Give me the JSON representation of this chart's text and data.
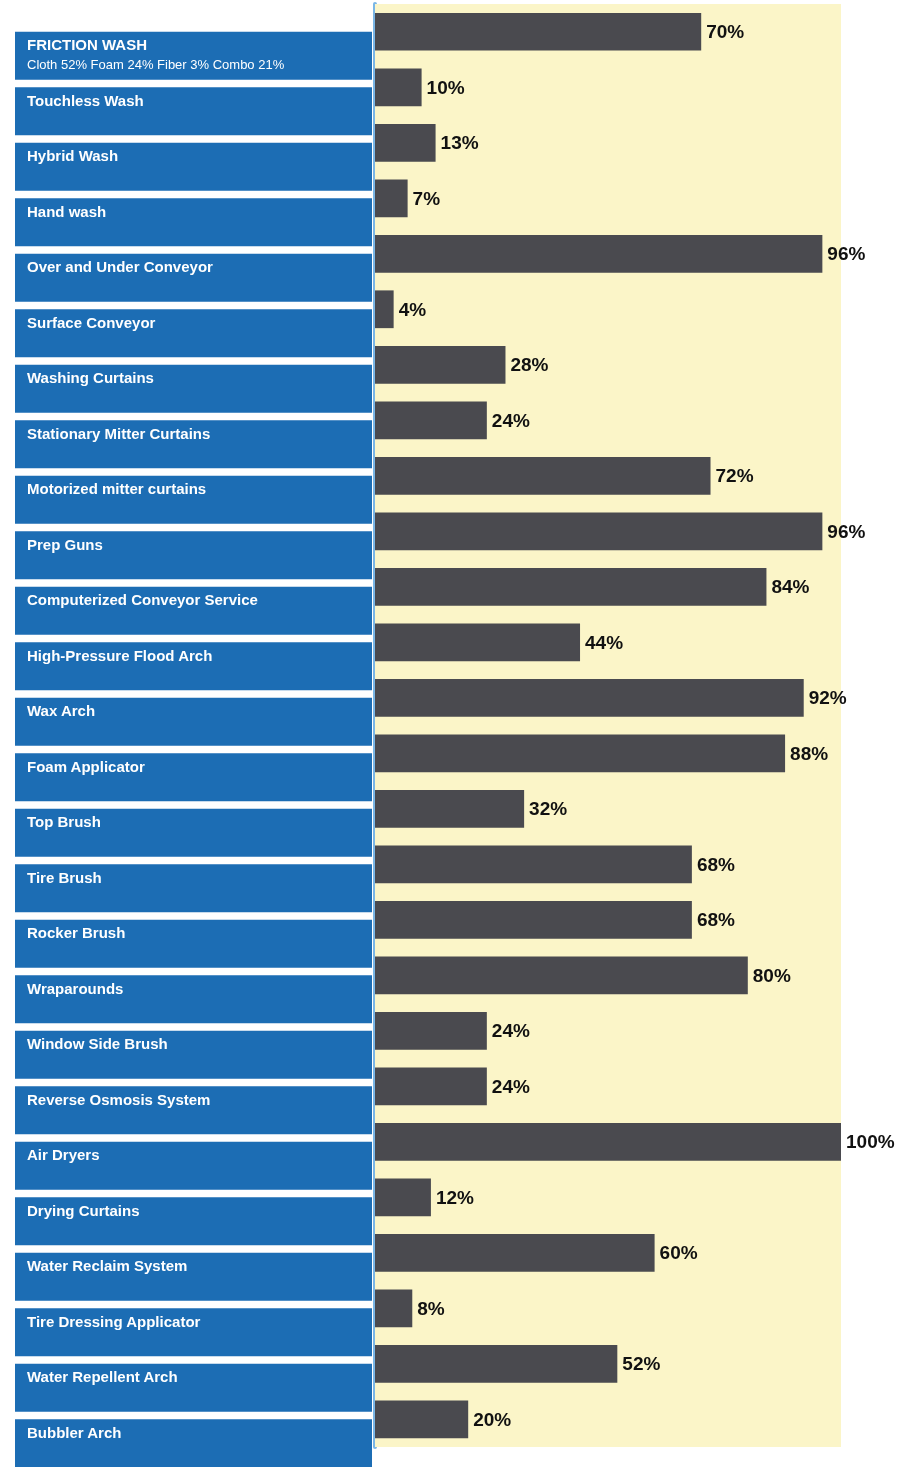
{
  "chart_data": {
    "type": "bar",
    "orientation": "horizontal",
    "grid": false,
    "categories": [
      "FRICTION WASH",
      "Touchless Wash",
      "Hybrid Wash",
      "Hand wash",
      "Over and Under Conveyor",
      "Surface Conveyor",
      "Washing Curtains",
      "Stationary Mitter Curtains",
      "Motorized mitter curtains",
      "Prep Guns",
      "Computerized Conveyor Service",
      "High-Pressure Flood Arch",
      "Wax Arch",
      "Foam Applicator",
      "Top Brush",
      "Tire Brush",
      "Rocker Brush",
      "Wraparounds",
      "Window Side Brush",
      "Reverse Osmosis System",
      "Air Dryers",
      "Drying Curtains",
      "Water Reclaim System",
      "Tire Dressing Applicator",
      "Water Repellent Arch",
      "Bubbler Arch"
    ],
    "series": [
      {
        "color": "#4a4a4f",
        "values": [
          70,
          10,
          13,
          7,
          96,
          4,
          28,
          24,
          72,
          96,
          84,
          44,
          92,
          88,
          32,
          68,
          68,
          80,
          24,
          24,
          100,
          12,
          60,
          8,
          52,
          20
        ],
        "value_labels": [
          "70%",
          "10%",
          "13%",
          "7%",
          "96%",
          "4%",
          "28%",
          "24%",
          "72%",
          "96%",
          "84%",
          "44%",
          "92%",
          "88%",
          "32%",
          "68%",
          "68%",
          "80%",
          "24%",
          "24%",
          "100%",
          "12%",
          "60%",
          "8%",
          "52%",
          "20%"
        ]
      }
    ],
    "bands": [
      {
        "axis": "x",
        "from": 0,
        "to": 100,
        "color": "#fbf5c8"
      }
    ],
    "annotations": [
      "Cloth 52% Foam 24% Fiber 3% Combo 21%"
    ]
  }
}
